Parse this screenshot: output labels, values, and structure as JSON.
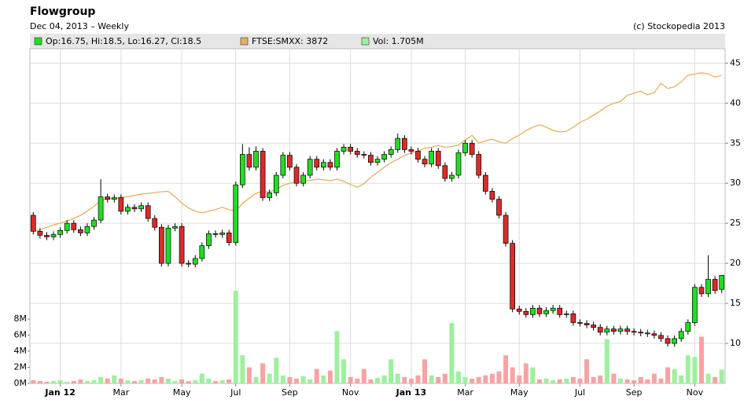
{
  "chart_data": {
    "type": "candlestick",
    "title": "Flowgroup",
    "subtitle": "Dec 04, 2013 – Weekly",
    "source": "(c) Stockopedia 2013",
    "categories": [
      null,
      null,
      null,
      null,
      "Jan 12",
      null,
      null,
      null,
      null,
      null,
      null,
      null,
      null,
      "Mar",
      null,
      null,
      null,
      null,
      null,
      null,
      null,
      null,
      "May",
      null,
      null,
      null,
      null,
      null,
      null,
      null,
      "Jul",
      null,
      null,
      null,
      null,
      null,
      null,
      null,
      "Sep",
      null,
      null,
      null,
      null,
      null,
      null,
      null,
      null,
      "Nov",
      null,
      null,
      null,
      null,
      null,
      null,
      null,
      null,
      "Jan 13",
      null,
      null,
      null,
      null,
      null,
      null,
      null,
      "Mar",
      null,
      null,
      null,
      null,
      null,
      null,
      null,
      "May",
      null,
      null,
      null,
      null,
      null,
      null,
      null,
      null,
      "Jul",
      null,
      null,
      null,
      null,
      null,
      null,
      null,
      "Sep",
      null,
      null,
      null,
      null,
      null,
      null,
      null,
      null,
      "Nov",
      null,
      null,
      null,
      null
    ],
    "ylim": [
      5,
      46.8
    ],
    "yticks": [
      10,
      15,
      20,
      25,
      30,
      35,
      40,
      45
    ],
    "y2lim": [
      1963,
      4036
    ],
    "volume_lim": [
      0,
      41.6
    ],
    "volume_ticks": [
      {
        "value": 0,
        "label": "0M"
      },
      {
        "value": 2,
        "label": "2M"
      },
      {
        "value": 4,
        "label": "4M"
      },
      {
        "value": 6,
        "label": "6M"
      },
      {
        "value": 8,
        "label": "8M"
      }
    ],
    "grid": true,
    "series": [
      {
        "name": "Op:16.75, Hi:18.5, Lo:16.27, Cl:18.5",
        "up_color": "#22dd22",
        "down_color": "#dd2a2a",
        "open": [
          26,
          24.0,
          23.5,
          23.3,
          23.6,
          24.1,
          25.0,
          24.2,
          23.8,
          24.6,
          25.4,
          28.3,
          28.0,
          28.2,
          26.5,
          27.0,
          26.8,
          27.2,
          25.6,
          24.5,
          20.0,
          24.4,
          24.6,
          20.0,
          19.9,
          20.6,
          22.2,
          23.7,
          23.6,
          23.8,
          22.6,
          29.8,
          33.6,
          32.0,
          34.0,
          28.2,
          28.8,
          31.0,
          33.5,
          32.0,
          30.0,
          31.0,
          33.0,
          32.0,
          32.6,
          32.0,
          34.0,
          34.5,
          34.0,
          33.6,
          33.5,
          32.6,
          33.0,
          33.6,
          34.2,
          35.6,
          34.2,
          34.0,
          33.0,
          32.4,
          34.0,
          32.2,
          30.6,
          31.0,
          33.8,
          35.0,
          33.6,
          31.0,
          29.0,
          28.0,
          26.0,
          22.5,
          14.3,
          14.0,
          13.6,
          14.4,
          13.7,
          14.1,
          14.4,
          13.6,
          13.7,
          12.6,
          12.5,
          12.3,
          12.0,
          11.4,
          11.8,
          11.5,
          11.8,
          11.5,
          11.4,
          11.3,
          11.2,
          11.0,
          10.6,
          10.0,
          10.6,
          11.5,
          12.6,
          17.0,
          16.2,
          18.0,
          16.75
        ],
        "high": [
          26.4,
          24.4,
          23.9,
          24.0,
          24.5,
          25.4,
          25.4,
          24.6,
          25.0,
          25.8,
          30.5,
          28.7,
          28.6,
          28.6,
          27.4,
          27.4,
          27.6,
          27.6,
          26.0,
          24.9,
          24.8,
          25.0,
          25.0,
          20.4,
          21.0,
          22.6,
          24.1,
          24.1,
          24.2,
          24.2,
          30.2,
          34.9,
          34.5,
          34.6,
          34.4,
          29.2,
          31.4,
          33.9,
          33.9,
          32.4,
          31.4,
          33.4,
          33.4,
          33.0,
          33.0,
          34.4,
          34.9,
          34.9,
          34.4,
          34.0,
          33.9,
          33.4,
          34.0,
          34.6,
          36.2,
          36.0,
          34.6,
          34.4,
          33.4,
          34.4,
          34.4,
          32.6,
          31.4,
          34.2,
          35.4,
          35.4,
          34.0,
          31.4,
          29.4,
          28.4,
          26.4,
          22.9,
          14.7,
          14.4,
          14.8,
          14.8,
          14.5,
          14.8,
          14.8,
          14.1,
          14.1,
          13.0,
          12.9,
          12.7,
          12.4,
          12.2,
          12.2,
          12.2,
          12.2,
          11.9,
          11.8,
          11.7,
          11.6,
          11.4,
          11.0,
          11.0,
          11.9,
          13.0,
          17.4,
          17.4,
          21.0,
          18.4,
          18.5
        ],
        "low": [
          23.6,
          23.1,
          22.9,
          22.9,
          23.2,
          23.7,
          23.8,
          23.4,
          23.4,
          24.2,
          25.0,
          27.6,
          27.6,
          26.1,
          26.1,
          26.4,
          26.4,
          25.2,
          24.1,
          19.6,
          19.6,
          24.0,
          19.6,
          19.5,
          19.5,
          20.2,
          21.8,
          23.2,
          23.2,
          22.2,
          22.2,
          29.4,
          31.6,
          31.6,
          27.8,
          27.8,
          28.4,
          30.6,
          31.6,
          29.6,
          29.6,
          30.6,
          31.6,
          31.6,
          31.6,
          31.6,
          33.6,
          33.6,
          33.2,
          33.1,
          32.2,
          32.2,
          32.6,
          33.2,
          33.8,
          33.8,
          33.6,
          32.6,
          32.0,
          32.0,
          31.8,
          30.2,
          30.2,
          30.6,
          33.4,
          33.2,
          30.6,
          28.6,
          27.6,
          25.6,
          22.1,
          13.9,
          13.6,
          13.2,
          13.2,
          13.3,
          13.3,
          13.7,
          13.2,
          13.2,
          12.2,
          12.1,
          11.9,
          11.6,
          11.0,
          11.0,
          11.1,
          11.1,
          11.1,
          11.0,
          10.9,
          10.8,
          10.6,
          10.2,
          9.6,
          9.6,
          10.2,
          11.1,
          12.2,
          15.8,
          15.8,
          16.2,
          16.27
        ],
        "close": [
          24.0,
          23.5,
          23.3,
          23.6,
          24.1,
          25.0,
          24.2,
          23.8,
          24.6,
          25.4,
          28.3,
          28.0,
          28.2,
          26.5,
          27.0,
          26.8,
          27.2,
          25.6,
          24.5,
          20.0,
          24.4,
          24.6,
          20.0,
          19.9,
          20.6,
          22.2,
          23.7,
          23.6,
          23.8,
          22.6,
          29.8,
          33.6,
          32.0,
          34.0,
          28.2,
          28.8,
          31.0,
          33.5,
          32.0,
          30.0,
          31.0,
          33.0,
          32.0,
          32.6,
          32.0,
          34.0,
          34.5,
          34.0,
          33.6,
          33.5,
          32.6,
          33.0,
          33.6,
          34.2,
          35.6,
          34.2,
          34.0,
          33.0,
          32.4,
          34.0,
          32.2,
          30.6,
          31.0,
          33.8,
          35.0,
          33.6,
          31.0,
          29.0,
          28.0,
          26.0,
          22.5,
          14.3,
          14.0,
          13.6,
          14.4,
          13.7,
          14.1,
          14.4,
          13.6,
          13.7,
          12.6,
          12.5,
          12.3,
          12.0,
          11.4,
          11.8,
          11.5,
          11.8,
          11.5,
          11.4,
          11.3,
          11.2,
          11.0,
          10.6,
          10.0,
          10.6,
          11.5,
          12.6,
          17.0,
          16.2,
          18.0,
          16.6,
          18.5
        ]
      },
      {
        "name": "FTSE:SMXX: 3872",
        "color": "#e6b060",
        "axis": "y2",
        "values": [
          2905,
          2915,
          2930,
          2945,
          2955,
          2970,
          2985,
          3004,
          3030,
          3060,
          3095,
          3104,
          3110,
          3115,
          3120,
          3128,
          3135,
          3140,
          3145,
          3150,
          3153,
          3120,
          3080,
          3050,
          3030,
          3019,
          3030,
          3040,
          3054,
          3040,
          3029,
          3079,
          3110,
          3140,
          3153,
          3150,
          3165,
          3190,
          3203,
          3210,
          3215,
          3220,
          3228,
          3225,
          3218,
          3228,
          3215,
          3195,
          3178,
          3200,
          3240,
          3270,
          3302,
          3330,
          3352,
          3376,
          3390,
          3401,
          3420,
          3426,
          3436,
          3426,
          3430,
          3440,
          3470,
          3500,
          3451,
          3465,
          3476,
          3460,
          3451,
          3480,
          3500,
          3530,
          3550,
          3565,
          3550,
          3530,
          3520,
          3525,
          3550,
          3580,
          3599,
          3624,
          3650,
          3680,
          3698,
          3710,
          3748,
          3760,
          3773,
          3750,
          3765,
          3822,
          3790,
          3800,
          3830,
          3872,
          3880,
          3887,
          3880,
          3860,
          3872
        ]
      },
      {
        "name": "Vol: 1.705M",
        "color": "#9ef09e",
        "down_color": "#f7a3a3",
        "axis": "volume",
        "values": [
          0.4,
          0.3,
          0.2,
          0.3,
          0.4,
          0.2,
          0.3,
          0.5,
          0.3,
          0.4,
          0.8,
          0.6,
          1.0,
          0.6,
          0.4,
          0.3,
          0.4,
          0.6,
          0.5,
          0.8,
          0.6,
          0.3,
          0.5,
          0.3,
          0.4,
          1.2,
          0.6,
          0.3,
          0.4,
          0.5,
          11.5,
          3.5,
          2.0,
          0.8,
          2.5,
          1.2,
          3.2,
          1.0,
          0.8,
          0.6,
          0.9,
          0.5,
          1.8,
          1.0,
          1.6,
          6.5,
          3.0,
          0.8,
          0.6,
          1.8,
          0.5,
          0.7,
          1.0,
          3.0,
          1.2,
          0.8,
          0.6,
          1.0,
          3.0,
          1.0,
          0.8,
          1.2,
          7.5,
          1.5,
          0.8,
          0.6,
          0.8,
          1.0,
          1.2,
          1.5,
          3.5,
          2.0,
          1.0,
          2.5,
          2.0,
          0.5,
          0.6,
          0.4,
          0.5,
          0.6,
          0.8,
          0.6,
          3.0,
          0.8,
          1.0,
          5.5,
          1.2,
          0.6,
          0.5,
          0.4,
          0.8,
          0.5,
          1.2,
          0.6,
          2.0,
          1.8,
          1.0,
          3.5,
          3.3,
          5.8,
          1.2,
          0.8,
          1.705
        ]
      }
    ]
  }
}
